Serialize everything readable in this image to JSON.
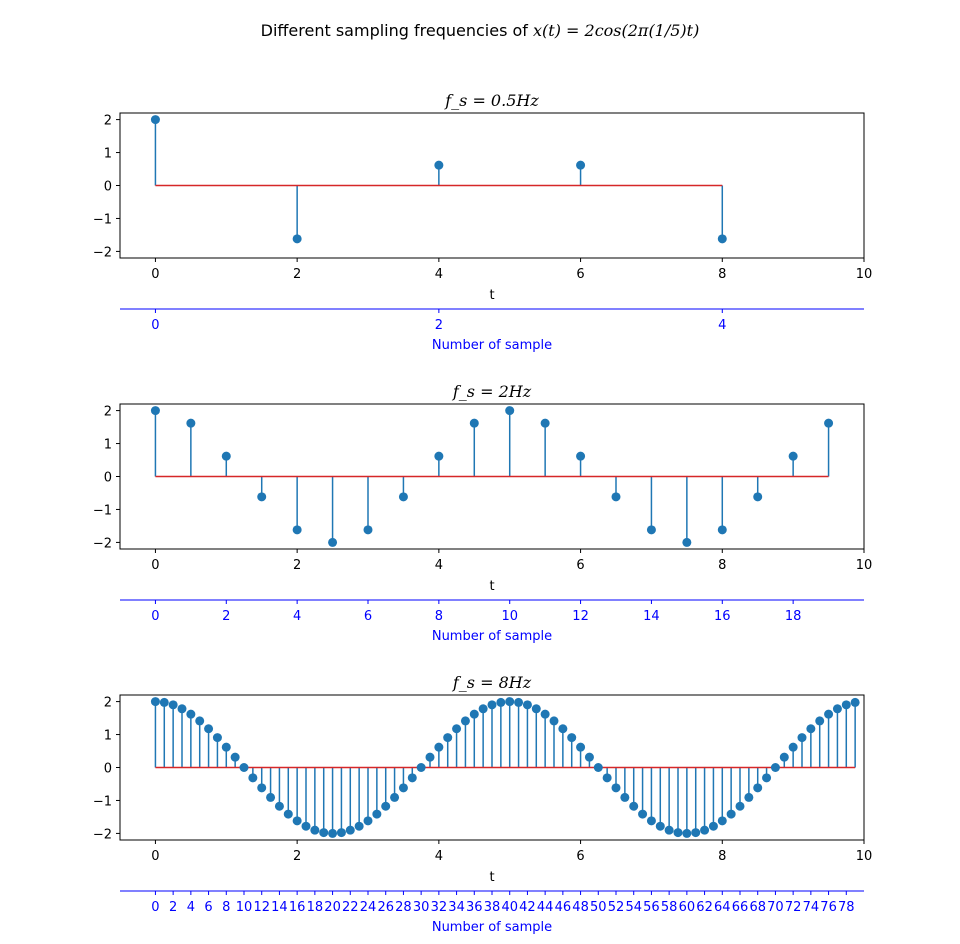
{
  "figure": {
    "title_prefix": "Different sampling frequencies of ",
    "title_formula": "x(t) = 2cos(2π(1/5)t)"
  },
  "colors": {
    "stem": "#1f77b4",
    "baseline": "#d62728",
    "secondary_axis": "#0000ff",
    "frame": "#000000"
  },
  "chart_data": [
    {
      "type": "stem",
      "title": "f_s = 0.5Hz",
      "xlabel": "t",
      "xlim": [
        -0.5,
        10
      ],
      "ylim": [
        -2.2,
        2.2
      ],
      "xticks": [
        0,
        2,
        4,
        6,
        8,
        10
      ],
      "yticks": [
        -2,
        -1,
        0,
        1,
        2
      ],
      "x": [
        0,
        2,
        4,
        6,
        8
      ],
      "y": [
        2.0,
        -1.618,
        0.618,
        0.618,
        -1.618
      ],
      "baseline": 0,
      "secondary_xlabel": "Number of sample",
      "secondary_ticks": [
        0,
        2,
        4
      ]
    },
    {
      "type": "stem",
      "title": "f_s = 2Hz",
      "xlabel": "t",
      "xlim": [
        -0.5,
        10
      ],
      "ylim": [
        -2.2,
        2.2
      ],
      "xticks": [
        0,
        2,
        4,
        6,
        8,
        10
      ],
      "yticks": [
        -2,
        -1,
        0,
        1,
        2
      ],
      "x": [
        0,
        0.5,
        1,
        1.5,
        2,
        2.5,
        3,
        3.5,
        4,
        4.5,
        5,
        5.5,
        6,
        6.5,
        7,
        7.5,
        8,
        8.5,
        9,
        9.5
      ],
      "y": [
        2.0,
        1.618,
        0.618,
        -0.618,
        -1.618,
        -2.0,
        -1.618,
        -0.618,
        0.618,
        1.618,
        2.0,
        1.618,
        0.618,
        -0.618,
        -1.618,
        -2.0,
        -1.618,
        -0.618,
        0.618,
        1.618
      ],
      "baseline": 0,
      "secondary_xlabel": "Number of sample",
      "secondary_ticks": [
        0,
        2,
        4,
        6,
        8,
        10,
        12,
        14,
        16,
        18
      ]
    },
    {
      "type": "stem",
      "title": "f_s = 8Hz",
      "xlabel": "t",
      "xlim": [
        -0.5,
        10
      ],
      "ylim": [
        -2.2,
        2.2
      ],
      "xticks": [
        0,
        2,
        4,
        6,
        8,
        10
      ],
      "yticks": [
        -2,
        -1,
        0,
        1,
        2
      ],
      "x": [
        0,
        0.125,
        0.25,
        0.375,
        0.5,
        0.625,
        0.75,
        0.875,
        1,
        1.125,
        1.25,
        1.375,
        1.5,
        1.625,
        1.75,
        1.875,
        2,
        2.125,
        2.25,
        2.375,
        2.5,
        2.625,
        2.75,
        2.875,
        3,
        3.125,
        3.25,
        3.375,
        3.5,
        3.625,
        3.75,
        3.875,
        4,
        4.125,
        4.25,
        4.375,
        4.5,
        4.625,
        4.75,
        4.875,
        5,
        5.125,
        5.25,
        5.375,
        5.5,
        5.625,
        5.75,
        5.875,
        6,
        6.125,
        6.25,
        6.375,
        6.5,
        6.625,
        6.75,
        6.875,
        7,
        7.125,
        7.25,
        7.375,
        7.5,
        7.625,
        7.75,
        7.875,
        8,
        8.125,
        8.25,
        8.375,
        8.5,
        8.625,
        8.75,
        8.875,
        9,
        9.125,
        9.25,
        9.375,
        9.5,
        9.625,
        9.75,
        9.875
      ],
      "y": [
        2.0,
        1.975,
        1.902,
        1.782,
        1.618,
        1.414,
        1.176,
        0.908,
        0.618,
        0.313,
        0.0,
        -0.313,
        -0.618,
        -0.908,
        -1.176,
        -1.414,
        -1.618,
        -1.782,
        -1.902,
        -1.975,
        -2.0,
        -1.975,
        -1.902,
        -1.782,
        -1.618,
        -1.414,
        -1.176,
        -0.908,
        -0.618,
        -0.313,
        0.0,
        0.313,
        0.618,
        0.908,
        1.176,
        1.414,
        1.618,
        1.782,
        1.902,
        1.975,
        2.0,
        1.975,
        1.902,
        1.782,
        1.618,
        1.414,
        1.176,
        0.908,
        0.618,
        0.313,
        0.0,
        -0.313,
        -0.618,
        -0.908,
        -1.176,
        -1.414,
        -1.618,
        -1.782,
        -1.902,
        -1.975,
        -2.0,
        -1.975,
        -1.902,
        -1.782,
        -1.618,
        -1.414,
        -1.176,
        -0.908,
        -0.618,
        -0.313,
        0.0,
        0.313,
        0.618,
        0.908,
        1.176,
        1.414,
        1.618,
        1.782,
        1.902,
        1.975
      ],
      "baseline": 0,
      "secondary_xlabel": "Number of sample",
      "secondary_ticks": [
        0,
        2,
        4,
        6,
        8,
        10,
        12,
        14,
        16,
        18,
        20,
        22,
        24,
        26,
        28,
        30,
        32,
        34,
        36,
        38,
        40,
        42,
        44,
        46,
        48,
        50,
        52,
        54,
        56,
        58,
        60,
        62,
        64,
        66,
        68,
        70,
        72,
        74,
        76,
        78
      ]
    }
  ]
}
